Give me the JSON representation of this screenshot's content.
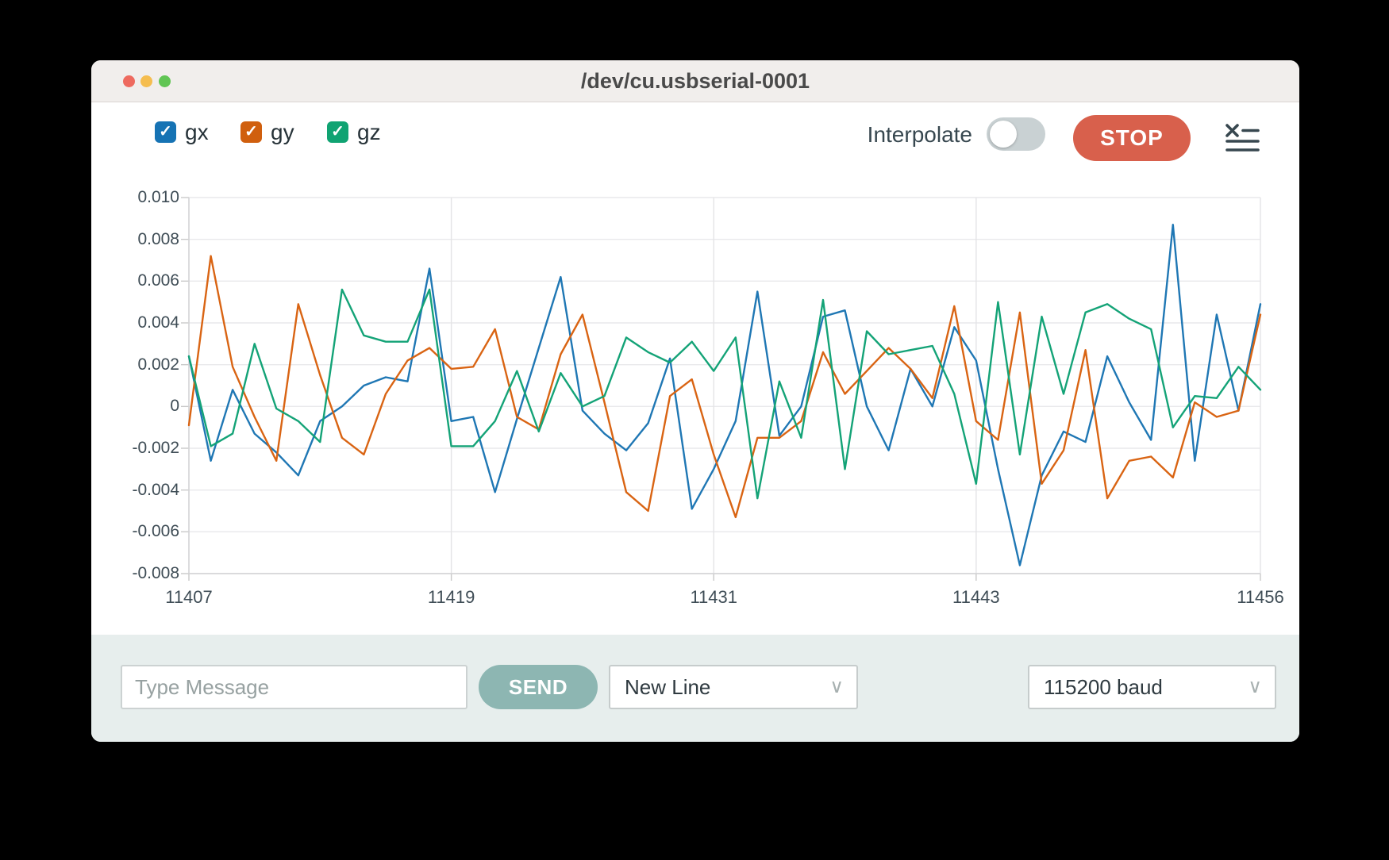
{
  "window": {
    "title": "/dev/cu.usbserial-0001"
  },
  "toolbar": {
    "checkboxes": [
      {
        "label": "gx",
        "color": "#1673b4",
        "checked": true,
        "check_glyph": "✓"
      },
      {
        "label": "gy",
        "color": "#d05f0e",
        "checked": true,
        "check_glyph": "✓"
      },
      {
        "label": "gz",
        "color": "#10a372",
        "checked": true,
        "check_glyph": "✓"
      }
    ],
    "interpolate_label": "Interpolate",
    "interpolate_on": false,
    "stop_label": "STOP",
    "stop_color": "#d8604c"
  },
  "chart_data": {
    "type": "line",
    "x_start": 11407,
    "x_end": 11456,
    "x_ticks": [
      11407,
      11419,
      11431,
      11443,
      11456
    ],
    "y_ticks": [
      0.01,
      0.008,
      0.006,
      0.004,
      0.002,
      0,
      -0.002,
      -0.004,
      -0.006,
      -0.008
    ],
    "y_tick_labels": [
      "0.010",
      "0.008",
      "0.006",
      "0.004",
      "0.002",
      "0",
      "-0.002",
      "-0.004",
      "-0.006",
      "-0.008"
    ],
    "ylim": [
      -0.008,
      0.01
    ],
    "grid": true,
    "legend_position": "top-left-toolbar",
    "series": [
      {
        "name": "gx",
        "color": "#1f77b4",
        "values": [
          0.0024,
          -0.0026,
          0.0008,
          -0.0013,
          -0.0022,
          -0.0033,
          -0.0007,
          0.0,
          0.001,
          0.0014,
          0.0012,
          0.0066,
          -0.0007,
          -0.0005,
          -0.0041,
          -0.0006,
          0.0028,
          0.0062,
          -0.0002,
          -0.0013,
          -0.0021,
          -0.0008,
          0.0023,
          -0.0049,
          -0.003,
          -0.0007,
          0.0055,
          -0.0014,
          0.0,
          0.0043,
          0.0046,
          0.0,
          -0.0021,
          0.0018,
          0.0,
          0.0038,
          0.0022,
          -0.003,
          -0.0076,
          -0.0033,
          -0.0012,
          -0.0017,
          0.0024,
          0.0002,
          -0.0016,
          0.0087,
          -0.0026,
          0.0044,
          -0.0002,
          0.0049
        ]
      },
      {
        "name": "gy",
        "color": "#d96413",
        "values": [
          -0.0009,
          0.0072,
          0.0019,
          -0.0005,
          -0.0026,
          0.0049,
          0.0015,
          -0.0015,
          -0.0023,
          0.0006,
          0.0022,
          0.0028,
          0.0018,
          0.0019,
          0.0037,
          -0.0005,
          -0.0011,
          0.0025,
          0.0044,
          0.0002,
          -0.0041,
          -0.005,
          0.0005,
          0.0013,
          -0.0023,
          -0.0053,
          -0.0015,
          -0.0015,
          -0.0007,
          0.0026,
          0.0006,
          0.0017,
          0.0028,
          0.0018,
          0.0004,
          0.0048,
          -0.0007,
          -0.0016,
          0.0045,
          -0.0037,
          -0.0021,
          0.0027,
          -0.0044,
          -0.0026,
          -0.0024,
          -0.0034,
          0.0002,
          -0.0005,
          -0.0002,
          0.0044
        ]
      },
      {
        "name": "gz",
        "color": "#14a377",
        "values": [
          0.0024,
          -0.0019,
          -0.0013,
          0.003,
          -0.0001,
          -0.0007,
          -0.0017,
          0.0056,
          0.0034,
          0.0031,
          0.0031,
          0.0056,
          -0.0019,
          -0.0019,
          -0.0007,
          0.0017,
          -0.0012,
          0.0016,
          0.0,
          0.0005,
          0.0033,
          0.0026,
          0.0021,
          0.0031,
          0.0017,
          0.0033,
          -0.0044,
          0.0012,
          -0.0015,
          0.0051,
          -0.003,
          0.0036,
          0.0025,
          0.0027,
          0.0029,
          0.0006,
          -0.0037,
          0.005,
          -0.0023,
          0.0043,
          0.0006,
          0.0045,
          0.0049,
          0.0042,
          0.0037,
          -0.001,
          0.0005,
          0.0004,
          0.0019,
          0.0008
        ]
      }
    ]
  },
  "bottom_bar": {
    "message_placeholder": "Type Message",
    "send_label": "SEND",
    "send_color": "#8db6b2",
    "line_ending": "New Line",
    "baud_rate": "115200 baud",
    "chevron_glyph": "∨"
  }
}
